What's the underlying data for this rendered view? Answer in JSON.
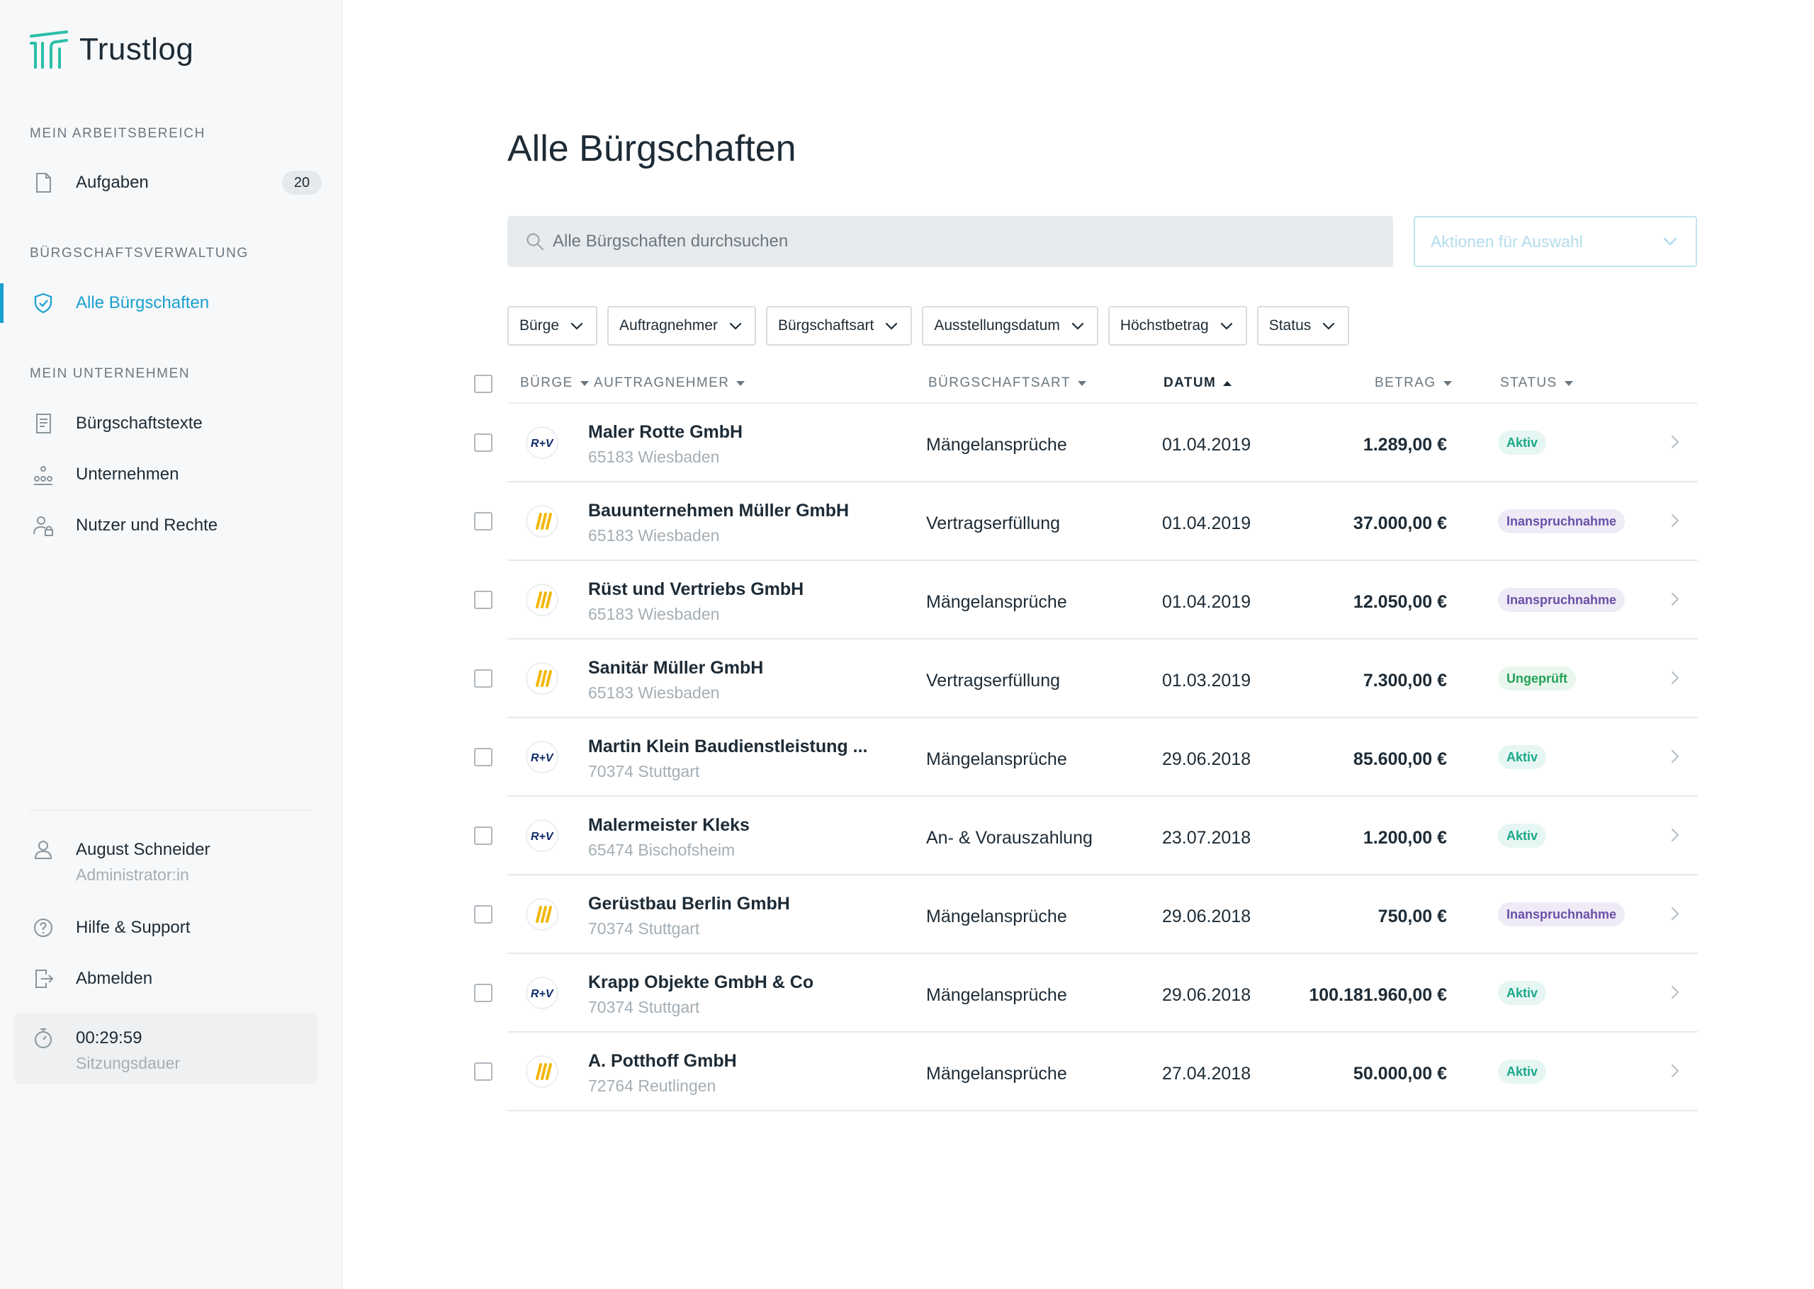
{
  "app": {
    "name": "Trustlog"
  },
  "colors": {
    "accent": "#1a9fcf",
    "brand_logo": "#2bbfa8",
    "aktiv": "#1ba88a",
    "inanspruchnahme": "#6a4fa8",
    "ungeprueft": "#22a355"
  },
  "sidebar": {
    "section_workspace": "Mein Arbeitsbereich",
    "tasks": {
      "label": "Aufgaben",
      "count": "20",
      "icon": "document-icon"
    },
    "section_guarantees": "Bürgschaftsverwaltung",
    "all_guarantees": {
      "label": "Alle Bürgschaften",
      "icon": "shield-icon"
    },
    "section_company": "Mein Unternehmen",
    "company_items": [
      {
        "label": "Bürgschaftstexte",
        "icon": "text-document-icon"
      },
      {
        "label": "Unternehmen",
        "icon": "org-chart-icon"
      },
      {
        "label": "Nutzer und Rechte",
        "icon": "user-lock-icon"
      }
    ],
    "user": {
      "name": "August Schneider",
      "role": "Administrator:in",
      "icon": "user-icon"
    },
    "help": {
      "label": "Hilfe & Support",
      "icon": "help-icon"
    },
    "logout": {
      "label": "Abmelden",
      "icon": "logout-icon"
    },
    "session": {
      "time": "00:29:59",
      "label": "Sitzungsdauer",
      "icon": "stopwatch-icon"
    }
  },
  "main": {
    "title": "Alle Bürgschaften",
    "search_placeholder": "Alle Bürgschaften durchsuchen",
    "actions_label": "Aktionen für Auswahl",
    "filters": [
      "Bürge",
      "Auftragnehmer",
      "Bürgschaftsart",
      "Ausstellungsdatum",
      "Höchstbetrag",
      "Status"
    ],
    "columns": {
      "buerge": "Bürge",
      "auftragnehmer": "Auftragnehmer",
      "art": "Bürgschaftsart",
      "datum": "Datum",
      "betrag": "Betrag",
      "status": "Status"
    },
    "rows": [
      {
        "guarantor": "R+V",
        "name": "Maler Rotte GmbH",
        "city": "65183 Wiesbaden",
        "type": "Mängelansprüche",
        "date": "01.04.2019",
        "amount": "1.289,00 €",
        "status": "Aktiv",
        "status_kind": "aktiv"
      },
      {
        "guarantor": "Stripes",
        "name": "Bauunternehmen Müller GmbH",
        "city": "65183 Wiesbaden",
        "type": "Vertragserfüllung",
        "date": "01.04.2019",
        "amount": "37.000,00 €",
        "status": "Inanspruchnahme",
        "status_kind": "inan"
      },
      {
        "guarantor": "Stripes",
        "name": "Rüst und Vertriebs GmbH",
        "city": "65183 Wiesbaden",
        "type": "Mängelansprüche",
        "date": "01.04.2019",
        "amount": "12.050,00 €",
        "status": "Inanspruchnahme",
        "status_kind": "inan"
      },
      {
        "guarantor": "Stripes",
        "name": "Sanitär Müller GmbH",
        "city": "65183 Wiesbaden",
        "type": "Vertragserfüllung",
        "date": "01.03.2019",
        "amount": "7.300,00 €",
        "status": "Ungeprüft",
        "status_kind": "ung"
      },
      {
        "guarantor": "R+V",
        "name": "Martin Klein Baudienstleistung ...",
        "city": "70374 Stuttgart",
        "type": "Mängelansprüche",
        "date": "29.06.2018",
        "amount": "85.600,00 €",
        "status": "Aktiv",
        "status_kind": "aktiv"
      },
      {
        "guarantor": "R+V",
        "name": "Malermeister Kleks",
        "city": "65474 Bischofsheim",
        "type": "An- & Vorauszahlung",
        "date": "23.07.2018",
        "amount": "1.200,00 €",
        "status": "Aktiv",
        "status_kind": "aktiv"
      },
      {
        "guarantor": "Stripes",
        "name": "Gerüstbau Berlin GmbH",
        "city": "70374 Stuttgart",
        "type": "Mängelansprüche",
        "date": "29.06.2018",
        "amount": "750,00 €",
        "status": "Inanspruchnahme",
        "status_kind": "inan"
      },
      {
        "guarantor": "R+V",
        "name": "Krapp Objekte GmbH & Co",
        "city": "70374 Stuttgart",
        "type": "Mängelansprüche",
        "date": "29.06.2018",
        "amount": "100.181.960,00 €",
        "status": "Aktiv",
        "status_kind": "aktiv"
      },
      {
        "guarantor": "Stripes",
        "name": "A. Potthoff GmbH",
        "city": "72764 Reutlingen",
        "type": "Mängelansprüche",
        "date": "27.04.2018",
        "amount": "50.000,00 €",
        "status": "Aktiv",
        "status_kind": "aktiv"
      }
    ]
  }
}
